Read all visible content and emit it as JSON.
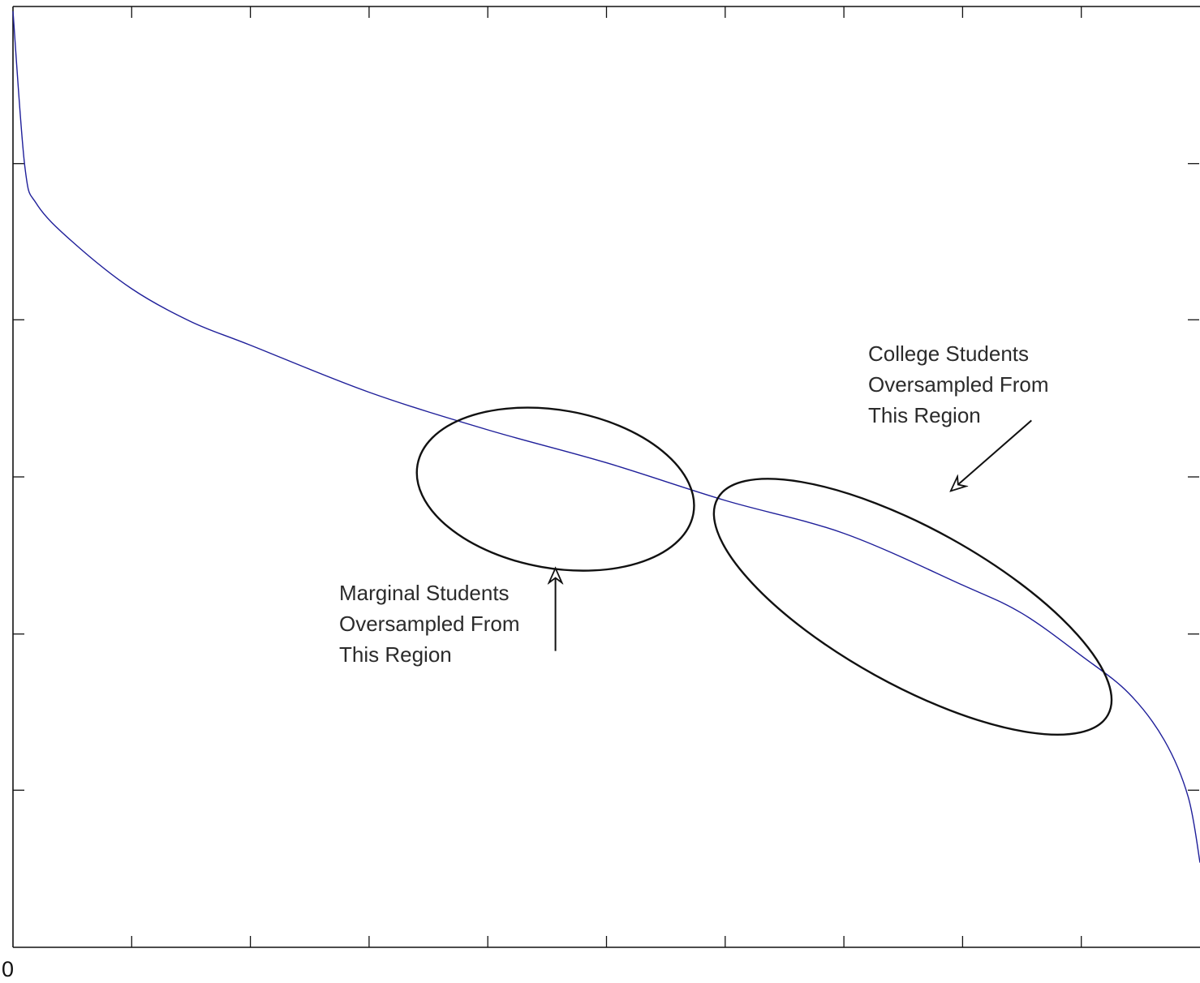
{
  "chart_data": {
    "type": "line",
    "title": "",
    "xlabel": "",
    "ylabel": "",
    "xlim": [
      0,
      1
    ],
    "ylim": [
      0,
      1
    ],
    "grid": false,
    "x_tick_labels": [
      "0"
    ],
    "x_ticks": [
      0.1,
      0.2,
      0.3,
      0.4,
      0.5,
      0.6,
      0.7,
      0.8,
      0.9
    ],
    "y_ticks": [
      0.167,
      0.333,
      0.5,
      0.667,
      0.833
    ],
    "series": [
      {
        "color": "#1f1f9a",
        "x": [
          0.0,
          0.01,
          0.02,
          0.05,
          0.1,
          0.15,
          0.2,
          0.3,
          0.4,
          0.5,
          0.6,
          0.7,
          0.8,
          0.85,
          0.9,
          0.94,
          0.97,
          0.99,
          1.0
        ],
        "y": [
          0.995,
          0.83,
          0.79,
          0.75,
          0.7,
          0.665,
          0.64,
          0.59,
          0.55,
          0.515,
          0.475,
          0.44,
          0.385,
          0.355,
          0.31,
          0.27,
          0.22,
          0.16,
          0.09
        ]
      }
    ],
    "annotations": [
      {
        "id": "marginal",
        "lines": [
          "Marginal Students",
          "Oversampled From",
          "This Region"
        ],
        "ellipse": {
          "cx": 0.457,
          "cy": 0.487,
          "rx": 0.118,
          "ry": 0.084,
          "rotation_deg": 10
        },
        "arrow": {
          "from": [
            0.457,
            0.315
          ],
          "to": [
            0.457,
            0.403
          ]
        }
      },
      {
        "id": "college",
        "lines": [
          "College Students",
          "Oversampled From",
          "This Region"
        ],
        "ellipse": {
          "cx": 0.758,
          "cy": 0.362,
          "rx": 0.188,
          "ry": 0.083,
          "rotation_deg": 29
        },
        "arrow": {
          "from": [
            0.858,
            0.56
          ],
          "to": [
            0.79,
            0.485
          ]
        }
      }
    ]
  }
}
